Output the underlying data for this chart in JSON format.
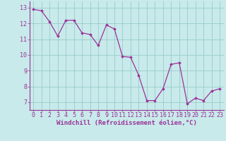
{
  "x": [
    0,
    1,
    2,
    3,
    4,
    5,
    6,
    7,
    8,
    9,
    10,
    11,
    12,
    13,
    14,
    15,
    16,
    17,
    18,
    19,
    20,
    21,
    22,
    23
  ],
  "y": [
    12.9,
    12.8,
    12.1,
    11.2,
    12.2,
    12.2,
    11.4,
    11.3,
    10.6,
    11.9,
    11.65,
    9.9,
    9.85,
    8.7,
    7.1,
    7.1,
    7.85,
    9.4,
    9.5,
    6.9,
    7.25,
    7.1,
    7.7,
    7.85
  ],
  "xlim_min": -0.5,
  "xlim_max": 23.5,
  "ylim_min": 6.5,
  "ylim_max": 13.4,
  "yticks": [
    7,
    8,
    9,
    10,
    11,
    12,
    13
  ],
  "xticks": [
    0,
    1,
    2,
    3,
    4,
    5,
    6,
    7,
    8,
    9,
    10,
    11,
    12,
    13,
    14,
    15,
    16,
    17,
    18,
    19,
    20,
    21,
    22,
    23
  ],
  "xlabel": "Windchill (Refroidissement éolien,°C)",
  "line_color": "#993399",
  "marker_color": "#993399",
  "bg_color": "#c8eaea",
  "grid_color": "#99cccc",
  "xlabel_fontsize": 6.5,
  "tick_fontsize": 6.0,
  "tick_color": "#993399",
  "spine_color": "#993399"
}
